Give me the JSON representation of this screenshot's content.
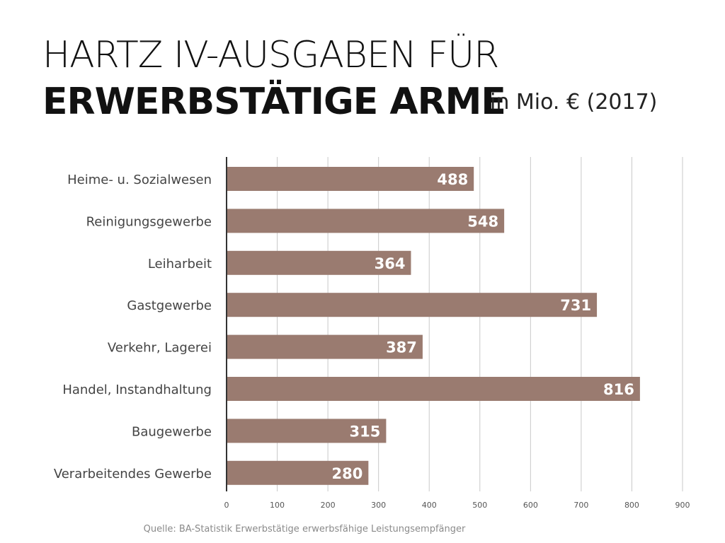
{
  "header": {
    "title_line1": "HARTZ IV-AUSGABEN FÜR",
    "title_line2": "ERWERBSTÄTIGE ARME",
    "unit": "in Mio. € (2017)"
  },
  "chart_data": {
    "type": "bar",
    "orientation": "horizontal",
    "categories": [
      "Heime- u. Sozialwesen",
      "Reinigungsgewerbe",
      "Leiharbeit",
      "Gastgewerbe",
      "Verkehr, Lagerei",
      "Handel, Instandhaltung",
      "Baugewerbe",
      "Verarbeitendes Gewerbe"
    ],
    "values": [
      488,
      548,
      364,
      731,
      387,
      816,
      315,
      280
    ],
    "xlim": [
      0,
      900
    ],
    "xticks": [
      0,
      100,
      200,
      300,
      400,
      500,
      600,
      700,
      800,
      900
    ],
    "grid": "vertical",
    "bar_color": "#9a7b70",
    "label_color": "#ffffff"
  },
  "footer": {
    "source": "Quelle: BA-Statistik Erwerbstätige erwerbsfähige Leistungsempfänger"
  }
}
